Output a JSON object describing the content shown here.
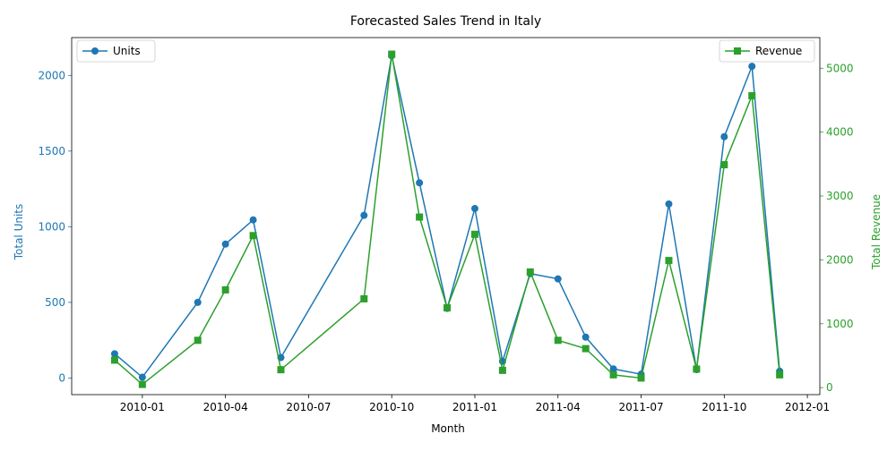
{
  "chart_data": {
    "type": "line",
    "title": "Forecasted Sales Trend in Italy",
    "xlabel": "Month",
    "ylabel_left": "Total Units",
    "ylabel_right": "Total Revenue",
    "x_ticks": [
      "2010-01",
      "2010-04",
      "2010-07",
      "2010-10",
      "2011-01",
      "2011-04",
      "2011-07",
      "2011-10",
      "2012-01"
    ],
    "y_left_ticks": [
      "0",
      "500",
      "1000",
      "1500",
      "2000"
    ],
    "y_right_ticks": [
      "0",
      "1000",
      "2000",
      "3000",
      "4000",
      "5000"
    ],
    "ylim_left": [
      -110,
      2250
    ],
    "ylim_right": [
      -110,
      5480
    ],
    "x": [
      "2009-12",
      "2010-01",
      "2010-03",
      "2010-04",
      "2010-05",
      "2010-06",
      "2010-09",
      "2010-10",
      "2010-11",
      "2010-12",
      "2011-01",
      "2011-02",
      "2011-03",
      "2011-04",
      "2011-05",
      "2011-06",
      "2011-07",
      "2011-08",
      "2011-09",
      "2011-10",
      "2011-11",
      "2011-12"
    ],
    "series": [
      {
        "name": "Units",
        "axis": "left",
        "color": "#1f77b4",
        "marker": "circle",
        "values": [
          160,
          5,
          500,
          885,
          1045,
          135,
          1075,
          2130,
          1290,
          460,
          1120,
          110,
          690,
          655,
          270,
          60,
          25,
          1150,
          55,
          1595,
          2060,
          45
        ]
      },
      {
        "name": "Revenue",
        "axis": "right",
        "color": "#2ca02c",
        "marker": "square",
        "values": [
          430,
          50,
          740,
          1530,
          2380,
          280,
          1390,
          5220,
          2670,
          1250,
          2400,
          270,
          1810,
          740,
          610,
          200,
          150,
          1990,
          290,
          3490,
          4570,
          200
        ]
      }
    ],
    "legend": [
      {
        "label": "Units",
        "placement": "upper-left"
      },
      {
        "label": "Revenue",
        "placement": "upper-right"
      }
    ],
    "grid": false
  }
}
